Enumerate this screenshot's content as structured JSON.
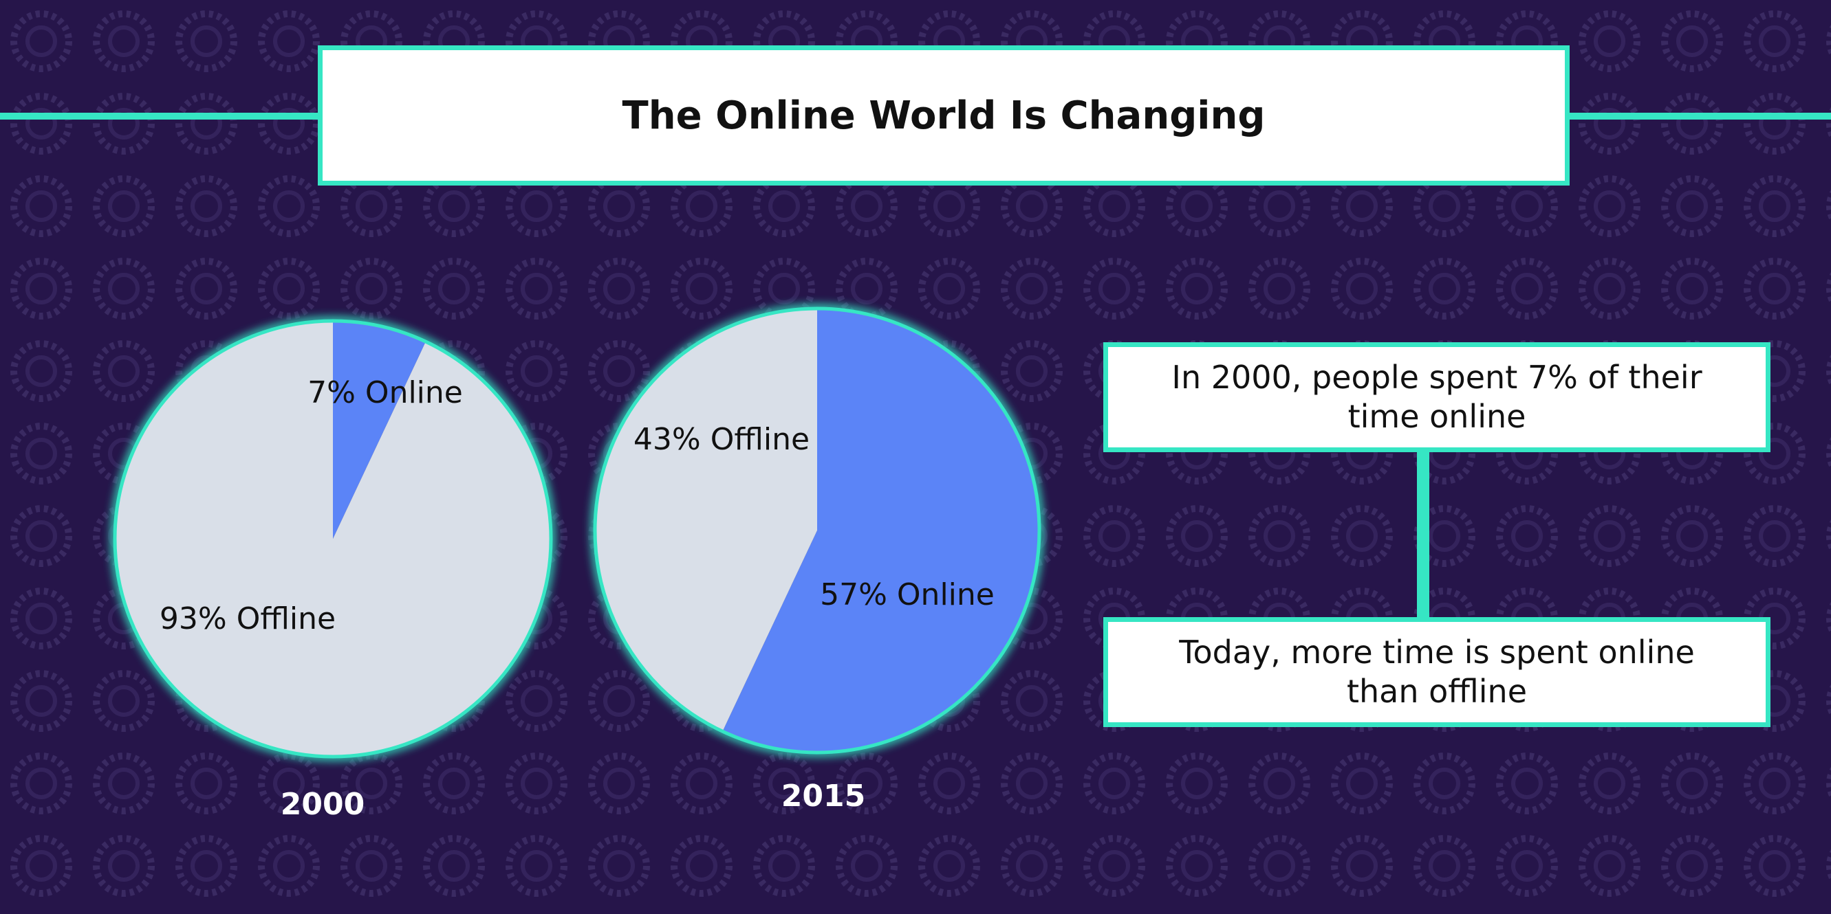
{
  "title": "The Online World Is Changing",
  "chart_data": [
    {
      "type": "pie",
      "label": "2000",
      "values": [
        7,
        93
      ],
      "value_labels": [
        "7% Online",
        "93% Offline"
      ],
      "colors": [
        "#5b84f7",
        "#d9dfe8"
      ]
    },
    {
      "type": "pie",
      "label": "2015",
      "values": [
        57,
        43
      ],
      "value_labels": [
        "57% Online",
        "43% Offline"
      ],
      "colors": [
        "#5b84f7",
        "#d9dfe8"
      ]
    }
  ],
  "notes": [
    "In 2000, people spent 7% of their time online",
    "Today, more time is spent online than offline"
  ]
}
